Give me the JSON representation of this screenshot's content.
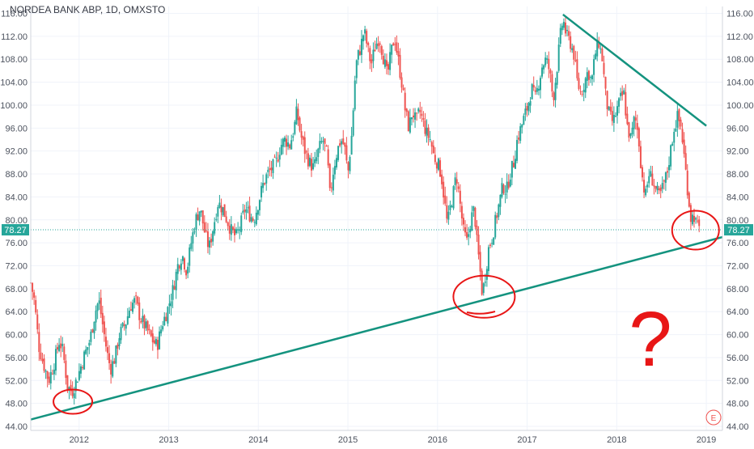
{
  "chart_data": {
    "type": "candlestick",
    "title": "NORDEA BANK ABP, 1D, OMXSTO",
    "last_price": "78.27",
    "y_ticks": [
      "116.00",
      "112.00",
      "108.00",
      "104.00",
      "100.00",
      "96.00",
      "92.00",
      "88.00",
      "84.00",
      "80.00",
      "76.00",
      "72.00",
      "68.00",
      "64.00",
      "60.00",
      "56.00",
      "52.00",
      "48.00",
      "44.00"
    ],
    "x_ticks": [
      "2012",
      "2013",
      "2014",
      "2015",
      "2016",
      "2017",
      "2018",
      "2019"
    ],
    "ylim": [
      43.3,
      117.2
    ],
    "xlim": [
      2011.46,
      2019.18
    ],
    "grid": true,
    "series": [
      {
        "values": [
          {
            "t": 2011.46,
            "p": 69
          },
          {
            "t": 2011.5,
            "p": 66
          },
          {
            "t": 2011.55,
            "p": 58
          },
          {
            "t": 2011.6,
            "p": 55
          },
          {
            "t": 2011.66,
            "p": 52
          },
          {
            "t": 2011.72,
            "p": 55
          },
          {
            "t": 2011.78,
            "p": 59
          },
          {
            "t": 2011.82,
            "p": 57
          },
          {
            "t": 2011.87,
            "p": 51
          },
          {
            "t": 2011.92,
            "p": 50
          },
          {
            "t": 2011.97,
            "p": 52
          },
          {
            "t": 2012.05,
            "p": 56
          },
          {
            "t": 2012.12,
            "p": 59
          },
          {
            "t": 2012.18,
            "p": 64
          },
          {
            "t": 2012.22,
            "p": 66
          },
          {
            "t": 2012.27,
            "p": 61
          },
          {
            "t": 2012.31,
            "p": 57
          },
          {
            "t": 2012.35,
            "p": 54
          },
          {
            "t": 2012.4,
            "p": 56
          },
          {
            "t": 2012.45,
            "p": 60
          },
          {
            "t": 2012.52,
            "p": 62
          },
          {
            "t": 2012.57,
            "p": 65
          },
          {
            "t": 2012.63,
            "p": 66
          },
          {
            "t": 2012.68,
            "p": 63
          },
          {
            "t": 2012.75,
            "p": 61
          },
          {
            "t": 2012.82,
            "p": 59
          },
          {
            "t": 2012.87,
            "p": 58
          },
          {
            "t": 2012.93,
            "p": 62
          },
          {
            "t": 2012.98,
            "p": 64
          },
          {
            "t": 2013.05,
            "p": 68
          },
          {
            "t": 2013.1,
            "p": 72
          },
          {
            "t": 2013.15,
            "p": 74
          },
          {
            "t": 2013.2,
            "p": 71
          },
          {
            "t": 2013.25,
            "p": 76
          },
          {
            "t": 2013.3,
            "p": 80
          },
          {
            "t": 2013.35,
            "p": 82
          },
          {
            "t": 2013.4,
            "p": 78
          },
          {
            "t": 2013.45,
            "p": 75
          },
          {
            "t": 2013.5,
            "p": 79
          },
          {
            "t": 2013.55,
            "p": 83
          },
          {
            "t": 2013.6,
            "p": 82
          },
          {
            "t": 2013.65,
            "p": 80
          },
          {
            "t": 2013.7,
            "p": 78
          },
          {
            "t": 2013.75,
            "p": 77
          },
          {
            "t": 2013.8,
            "p": 79
          },
          {
            "t": 2013.85,
            "p": 82
          },
          {
            "t": 2013.9,
            "p": 81
          },
          {
            "t": 2013.95,
            "p": 80
          },
          {
            "t": 2014.0,
            "p": 83
          },
          {
            "t": 2014.05,
            "p": 86
          },
          {
            "t": 2014.1,
            "p": 88
          },
          {
            "t": 2014.15,
            "p": 89
          },
          {
            "t": 2014.2,
            "p": 90
          },
          {
            "t": 2014.25,
            "p": 93
          },
          {
            "t": 2014.3,
            "p": 94
          },
          {
            "t": 2014.35,
            "p": 93
          },
          {
            "t": 2014.4,
            "p": 96
          },
          {
            "t": 2014.43,
            "p": 99
          },
          {
            "t": 2014.47,
            "p": 95
          },
          {
            "t": 2014.52,
            "p": 92
          },
          {
            "t": 2014.57,
            "p": 90
          },
          {
            "t": 2014.62,
            "p": 89
          },
          {
            "t": 2014.67,
            "p": 92
          },
          {
            "t": 2014.72,
            "p": 94
          },
          {
            "t": 2014.77,
            "p": 91
          },
          {
            "t": 2014.8,
            "p": 84
          },
          {
            "t": 2014.84,
            "p": 89
          },
          {
            "t": 2014.88,
            "p": 92
          },
          {
            "t": 2014.92,
            "p": 94
          },
          {
            "t": 2014.96,
            "p": 93
          },
          {
            "t": 2015.0,
            "p": 88
          },
          {
            "t": 2015.03,
            "p": 93
          },
          {
            "t": 2015.05,
            "p": 96
          },
          {
            "t": 2015.07,
            "p": 103
          },
          {
            "t": 2015.1,
            "p": 108
          },
          {
            "t": 2015.14,
            "p": 110
          },
          {
            "t": 2015.18,
            "p": 113
          },
          {
            "t": 2015.22,
            "p": 110
          },
          {
            "t": 2015.26,
            "p": 107
          },
          {
            "t": 2015.3,
            "p": 110
          },
          {
            "t": 2015.35,
            "p": 112
          },
          {
            "t": 2015.4,
            "p": 108
          },
          {
            "t": 2015.44,
            "p": 105
          },
          {
            "t": 2015.48,
            "p": 109
          },
          {
            "t": 2015.52,
            "p": 112
          },
          {
            "t": 2015.56,
            "p": 108
          },
          {
            "t": 2015.6,
            "p": 104
          },
          {
            "t": 2015.64,
            "p": 99
          },
          {
            "t": 2015.68,
            "p": 96
          },
          {
            "t": 2015.72,
            "p": 99
          },
          {
            "t": 2015.76,
            "p": 97
          },
          {
            "t": 2015.8,
            "p": 99
          },
          {
            "t": 2015.84,
            "p": 97
          },
          {
            "t": 2015.88,
            "p": 95
          },
          {
            "t": 2015.92,
            "p": 94
          },
          {
            "t": 2015.96,
            "p": 91
          },
          {
            "t": 2016.0,
            "p": 90
          },
          {
            "t": 2016.04,
            "p": 88
          },
          {
            "t": 2016.08,
            "p": 83
          },
          {
            "t": 2016.11,
            "p": 79
          },
          {
            "t": 2016.14,
            "p": 82
          },
          {
            "t": 2016.18,
            "p": 85
          },
          {
            "t": 2016.21,
            "p": 88
          },
          {
            "t": 2016.25,
            "p": 83
          },
          {
            "t": 2016.29,
            "p": 78
          },
          {
            "t": 2016.33,
            "p": 76
          },
          {
            "t": 2016.37,
            "p": 80
          },
          {
            "t": 2016.41,
            "p": 82
          },
          {
            "t": 2016.44,
            "p": 76
          },
          {
            "t": 2016.47,
            "p": 72
          },
          {
            "t": 2016.5,
            "p": 67
          },
          {
            "t": 2016.53,
            "p": 70
          },
          {
            "t": 2016.57,
            "p": 75
          },
          {
            "t": 2016.61,
            "p": 77
          },
          {
            "t": 2016.65,
            "p": 80
          },
          {
            "t": 2016.69,
            "p": 83
          },
          {
            "t": 2016.73,
            "p": 86
          },
          {
            "t": 2016.77,
            "p": 85
          },
          {
            "t": 2016.81,
            "p": 88
          },
          {
            "t": 2016.85,
            "p": 90
          },
          {
            "t": 2016.89,
            "p": 94
          },
          {
            "t": 2016.93,
            "p": 96
          },
          {
            "t": 2016.97,
            "p": 98
          },
          {
            "t": 2017.01,
            "p": 100
          },
          {
            "t": 2017.05,
            "p": 103
          },
          {
            "t": 2017.09,
            "p": 101
          },
          {
            "t": 2017.13,
            "p": 104
          },
          {
            "t": 2017.17,
            "p": 107
          },
          {
            "t": 2017.21,
            "p": 108
          },
          {
            "t": 2017.25,
            "p": 106
          },
          {
            "t": 2017.29,
            "p": 101
          },
          {
            "t": 2017.33,
            "p": 106
          },
          {
            "t": 2017.37,
            "p": 112
          },
          {
            "t": 2017.4,
            "p": 115
          },
          {
            "t": 2017.44,
            "p": 112
          },
          {
            "t": 2017.48,
            "p": 111
          },
          {
            "t": 2017.52,
            "p": 109
          },
          {
            "t": 2017.56,
            "p": 104
          },
          {
            "t": 2017.6,
            "p": 102
          },
          {
            "t": 2017.64,
            "p": 104
          },
          {
            "t": 2017.68,
            "p": 106
          },
          {
            "t": 2017.72,
            "p": 104
          },
          {
            "t": 2017.76,
            "p": 109
          },
          {
            "t": 2017.8,
            "p": 111
          },
          {
            "t": 2017.84,
            "p": 108
          },
          {
            "t": 2017.88,
            "p": 101
          },
          {
            "t": 2017.92,
            "p": 98
          },
          {
            "t": 2017.96,
            "p": 97
          },
          {
            "t": 2018.0,
            "p": 99
          },
          {
            "t": 2018.04,
            "p": 101
          },
          {
            "t": 2018.08,
            "p": 102
          },
          {
            "t": 2018.12,
            "p": 96
          },
          {
            "t": 2018.16,
            "p": 94
          },
          {
            "t": 2018.2,
            "p": 98
          },
          {
            "t": 2018.24,
            "p": 95
          },
          {
            "t": 2018.28,
            "p": 88
          },
          {
            "t": 2018.32,
            "p": 84
          },
          {
            "t": 2018.36,
            "p": 88
          },
          {
            "t": 2018.4,
            "p": 87
          },
          {
            "t": 2018.44,
            "p": 85
          },
          {
            "t": 2018.48,
            "p": 84
          },
          {
            "t": 2018.52,
            "p": 86
          },
          {
            "t": 2018.56,
            "p": 88
          },
          {
            "t": 2018.6,
            "p": 92
          },
          {
            "t": 2018.64,
            "p": 96
          },
          {
            "t": 2018.68,
            "p": 98
          },
          {
            "t": 2018.72,
            "p": 96
          },
          {
            "t": 2018.76,
            "p": 90
          },
          {
            "t": 2018.8,
            "p": 84
          },
          {
            "t": 2018.83,
            "p": 80
          },
          {
            "t": 2018.86,
            "p": 81
          },
          {
            "t": 2018.89,
            "p": 79
          },
          {
            "t": 2018.92,
            "p": 78.27
          }
        ]
      }
    ]
  },
  "colors": {
    "up": "#26a69a",
    "down": "#ef5350",
    "trendline": "#14937f",
    "annotation": "#e81616",
    "grid": "#f0f3fa",
    "axis_text": "#4c525e",
    "price_tag": "#26a69a"
  },
  "annotations": {
    "question_mark": "?",
    "events_badge": "E"
  }
}
